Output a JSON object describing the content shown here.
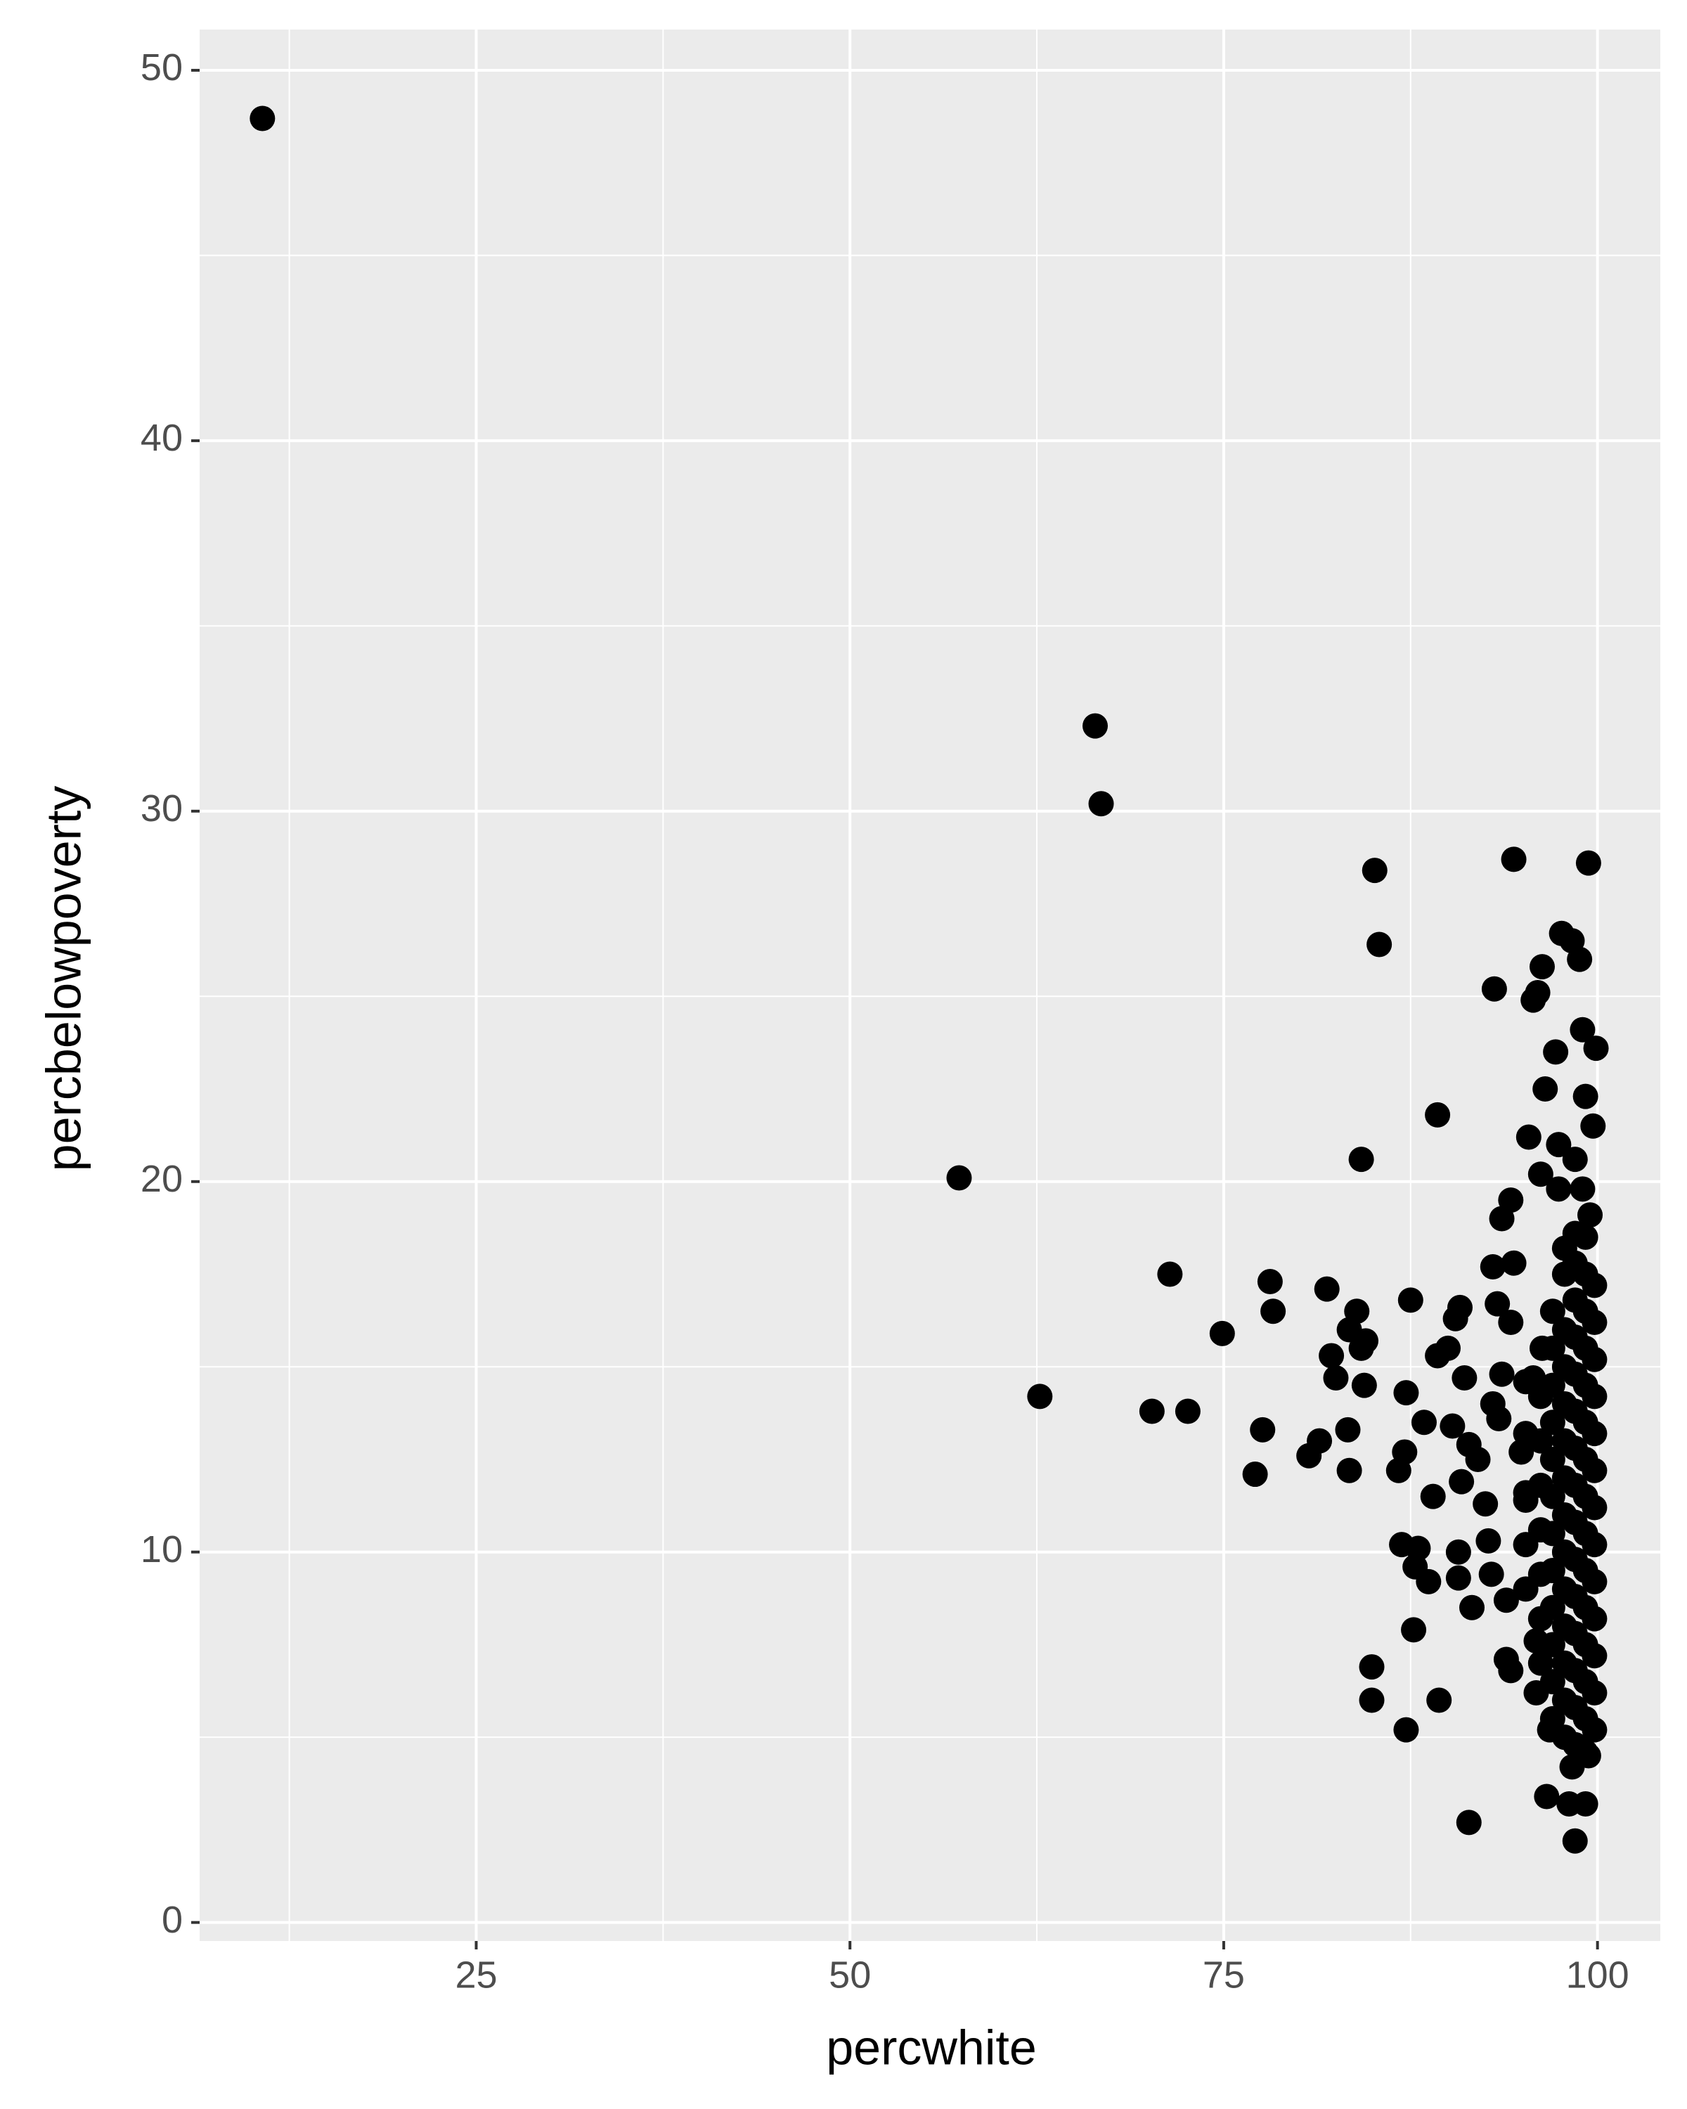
{
  "chart_data": {
    "type": "scatter",
    "x_label": "percwhite",
    "y_label": "percbelowpoverty",
    "xlim": [
      6.5,
      104.2
    ],
    "ylim": [
      -0.5,
      51.1
    ],
    "xticks": [
      25,
      50,
      75,
      100
    ],
    "yticks": [
      0,
      10,
      20,
      30,
      40,
      50
    ],
    "xminor": [
      12.5,
      37.5,
      62.5,
      87.5
    ],
    "yminor": [
      5,
      15,
      25,
      35,
      45
    ],
    "grid": true,
    "color": "#000000",
    "x": [
      10.7,
      66.4,
      66.8,
      57.3,
      62.7,
      71.4,
      70.2,
      72.6,
      74.9,
      77.1,
      77.6,
      78.1,
      78.3,
      80.7,
      81.4,
      81.9,
      82.2,
      82.5,
      83.3,
      83.4,
      83.4,
      83.9,
      84.2,
      84.4,
      84.5,
      84.2,
      85.1,
      85.4,
      84.9,
      84.9,
      87.2,
      87.5,
      87.2,
      87.1,
      86.7,
      86.9,
      87.8,
      88.0,
      87.7,
      88.7,
      88.4,
      89.4,
      89.0,
      89.3,
      89.3,
      90.0,
      90.3,
      90.5,
      90.8,
      90.7,
      90.7,
      90.9,
      91.1,
      91.4,
      91.6,
      91.4,
      92.0,
      92.5,
      92.7,
      92.9,
      93.0,
      93.1,
      93.0,
      93.3,
      93.6,
      94.2,
      94.4,
      94.4,
      93.9,
      94.2,
      93.9,
      94.2,
      93.6,
      93.4,
      94.9,
      95.2,
      95.4,
      95.7,
      96.0,
      96.3,
      95.7,
      95.9,
      96.2,
      95.9,
      96.3,
      96.5,
      96.6,
      96.8,
      97.2,
      97.4,
      97.4,
      97.6,
      98.1,
      98.3,
      98.5,
      98.3,
      98.8,
      99.0,
      99.2,
      99.4,
      99.9,
      99.7,
      99.2,
      99.4,
      98.5,
      99.0,
      99.5,
      97.0,
      97.0,
      97.0,
      97.0,
      97.0,
      97.0,
      97.0,
      97.0,
      97.0,
      97.0,
      97.0,
      97.0,
      97.8,
      97.8,
      97.8,
      97.8,
      97.8,
      97.8,
      97.8,
      97.8,
      97.8,
      97.8,
      97.8,
      97.8,
      97.8,
      97.8,
      98.5,
      98.5,
      98.5,
      98.5,
      98.5,
      98.5,
      98.5,
      98.5,
      98.5,
      98.5,
      98.5,
      98.5,
      98.5,
      98.5,
      98.5,
      99.2,
      99.2,
      99.2,
      99.2,
      99.2,
      99.2,
      99.2,
      99.2,
      99.2,
      99.2,
      99.2,
      99.2,
      99.2,
      99.2,
      99.2,
      99.8,
      99.8,
      99.8,
      99.8,
      99.8,
      99.8,
      99.8,
      99.8,
      99.8,
      99.8,
      99.8,
      99.8,
      99.8,
      96.2,
      96.2,
      96.2,
      96.2,
      96.2,
      96.2,
      96.2,
      95.2,
      95.2,
      95.2,
      95.2,
      95.2
    ],
    "y": [
      48.7,
      32.3,
      30.2,
      20.1,
      14.2,
      17.5,
      13.8,
      13.8,
      15.9,
      12.1,
      13.3,
      17.3,
      16.5,
      12.6,
      13.0,
      17.1,
      15.3,
      14.7,
      13.3,
      12.2,
      16.0,
      16.5,
      15.5,
      14.5,
      15.7,
      20.6,
      28.4,
      26.4,
      6.9,
      6.0,
      5.2,
      16.8,
      14.3,
      12.7,
      12.2,
      10.2,
      9.6,
      10.1,
      7.9,
      9.2,
      13.5,
      6.0,
      11.5,
      15.3,
      21.8,
      15.5,
      13.4,
      16.3,
      16.6,
      10.0,
      9.3,
      11.9,
      14.7,
      2.7,
      8.5,
      12.9,
      12.5,
      11.3,
      10.3,
      9.4,
      14.0,
      25.2,
      17.7,
      16.7,
      19.0,
      19.5,
      28.7,
      17.8,
      7.1,
      6.8,
      8.7,
      16.2,
      14.8,
      13.6,
      12.7,
      11.4,
      21.2,
      24.9,
      25.1,
      25.8,
      14.7,
      6.2,
      20.2,
      7.6,
      15.5,
      22.5,
      3.4,
      5.2,
      23.5,
      21.0,
      19.8,
      26.7,
      3.2,
      26.5,
      2.2,
      4.2,
      26.0,
      24.1,
      22.3,
      28.6,
      23.6,
      21.5,
      3.2,
      4.5,
      20.6,
      19.8,
      19.1,
      5.5,
      6.5,
      7.5,
      8.5,
      9.5,
      10.5,
      11.5,
      12.5,
      13.5,
      14.5,
      15.5,
      16.5,
      5.0,
      6.0,
      7.0,
      8.0,
      9.0,
      10.0,
      11.0,
      12.0,
      13.0,
      14.0,
      15.0,
      16.0,
      17.5,
      18.2,
      4.8,
      5.8,
      6.8,
      7.8,
      8.8,
      9.8,
      10.8,
      11.8,
      12.8,
      13.8,
      14.8,
      15.8,
      16.8,
      17.8,
      18.6,
      4.6,
      5.5,
      6.5,
      7.5,
      8.5,
      9.5,
      10.5,
      11.5,
      12.5,
      13.5,
      14.5,
      15.5,
      16.5,
      17.5,
      18.5,
      5.2,
      6.2,
      7.2,
      8.2,
      9.2,
      10.2,
      11.2,
      12.2,
      13.2,
      14.2,
      15.2,
      16.2,
      17.2,
      7.0,
      8.2,
      9.4,
      10.6,
      11.8,
      13.0,
      14.2,
      9.0,
      10.2,
      11.6,
      13.2,
      14.6
    ]
  }
}
